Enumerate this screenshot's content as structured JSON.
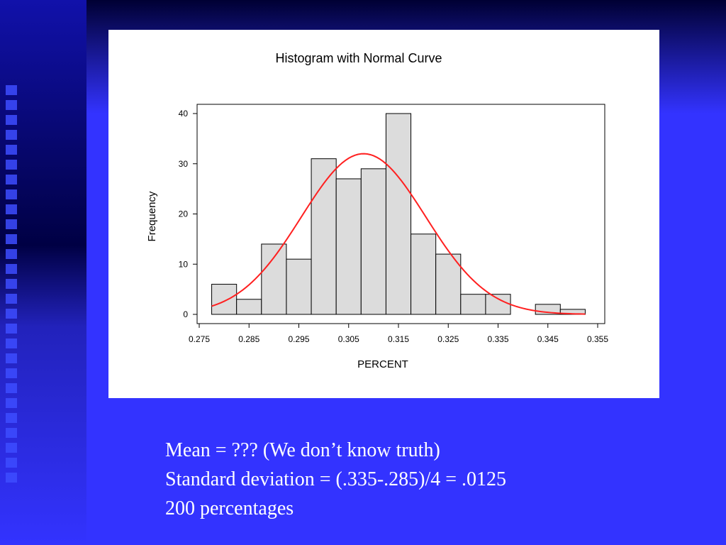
{
  "theme": {
    "slide_background": "#3333ff",
    "header_bar": "#000033",
    "left_band": "#2222cc",
    "panel_background": "#ffffff",
    "bar_fill": "#dcdcdc",
    "bar_stroke": "#000000",
    "curve_color": "#ff2020",
    "notes_color": "#ffffff"
  },
  "chart_data": {
    "type": "bar",
    "title": "Histogram with Normal Curve",
    "xlabel": "PERCENT",
    "ylabel": "Frequency",
    "xlim": [
      0.275,
      0.355
    ],
    "ylim": [
      0,
      42
    ],
    "x_ticks": [
      0.275,
      0.285,
      0.295,
      0.305,
      0.315,
      0.325,
      0.335,
      0.345,
      0.355
    ],
    "x_tick_labels": [
      "0.275",
      "0.285",
      "0.295",
      "0.305",
      "0.315",
      "0.325",
      "0.335",
      "0.345",
      "0.355"
    ],
    "y_ticks": [
      0,
      10,
      20,
      30,
      40
    ],
    "y_tick_labels": [
      "0",
      "10",
      "20",
      "30",
      "40"
    ],
    "bins": [
      {
        "start": 0.2775,
        "end": 0.2825,
        "count": 6
      },
      {
        "start": 0.2825,
        "end": 0.2875,
        "count": 3
      },
      {
        "start": 0.2875,
        "end": 0.2925,
        "count": 14
      },
      {
        "start": 0.2925,
        "end": 0.2975,
        "count": 11
      },
      {
        "start": 0.2975,
        "end": 0.3025,
        "count": 31
      },
      {
        "start": 0.3025,
        "end": 0.3075,
        "count": 27
      },
      {
        "start": 0.3075,
        "end": 0.3125,
        "count": 29
      },
      {
        "start": 0.3125,
        "end": 0.3175,
        "count": 40
      },
      {
        "start": 0.3175,
        "end": 0.3225,
        "count": 16
      },
      {
        "start": 0.3225,
        "end": 0.3275,
        "count": 12
      },
      {
        "start": 0.3275,
        "end": 0.3325,
        "count": 4
      },
      {
        "start": 0.3325,
        "end": 0.3375,
        "count": 4
      },
      {
        "start": 0.3375,
        "end": 0.3425,
        "count": 0
      },
      {
        "start": 0.3425,
        "end": 0.3475,
        "count": 2
      },
      {
        "start": 0.3475,
        "end": 0.3525,
        "count": 1
      }
    ],
    "normal_curve": {
      "mean": 0.308,
      "sd": 0.0125,
      "peak": 32,
      "x_range": [
        0.2775,
        0.3525
      ]
    },
    "grid": false,
    "legend": "none"
  },
  "notes": {
    "line1": "Mean = ??? (We don’t know truth)",
    "line2": "Standard deviation =  (.335-.285)/4 = .0125",
    "line3": "200 percentages"
  }
}
